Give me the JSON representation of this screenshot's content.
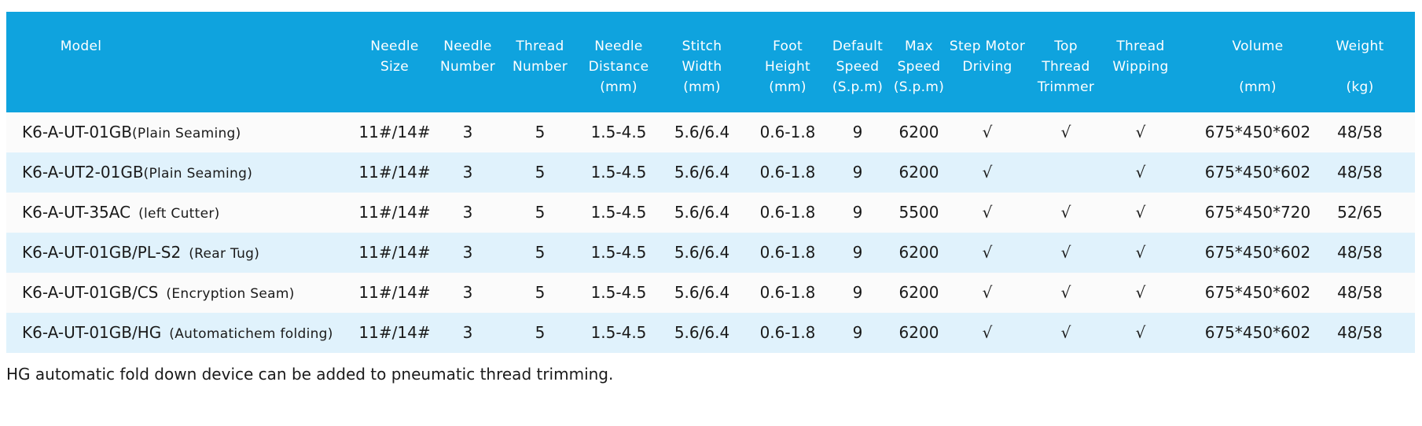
{
  "table": {
    "headers": [
      [
        "Model"
      ],
      [
        "Needle",
        "Size"
      ],
      [
        "Needle",
        "Number"
      ],
      [
        "Thread",
        "Number"
      ],
      [
        "Needle",
        "Distance",
        "(mm)"
      ],
      [
        "Stitch",
        "Width",
        "(mm)"
      ],
      [
        "Foot",
        "Height",
        "(mm)"
      ],
      [
        "Default",
        "Speed",
        "(S.p.m)"
      ],
      [
        "Max",
        "Speed",
        "(S.p.m)"
      ],
      [
        "Step Motor",
        "Driving"
      ],
      [
        "Top",
        "Thread",
        "Trimmer"
      ],
      [
        "Thread",
        "Wipping"
      ],
      [
        "Volume",
        "",
        "(mm)"
      ],
      [
        "Weight",
        "",
        "(kg)"
      ]
    ],
    "rows": [
      {
        "model": "K6-A-UT-01GB",
        "note": "(Plain Seaming)",
        "needle_size": "11#/14#",
        "needle_number": "3",
        "thread_number": "5",
        "needle_distance": "1.5-4.5",
        "stitch_width": "5.6/6.4",
        "foot_height": "0.6-1.8",
        "default_speed": "9",
        "max_speed": "6200",
        "step_motor": "√",
        "top_thread_trimmer": "√",
        "thread_wipping": "√",
        "volume": "675*450*602",
        "weight": "48/58"
      },
      {
        "model": "K6-A-UT2-01GB",
        "note": "(Plain Seaming)",
        "needle_size": "11#/14#",
        "needle_number": "3",
        "thread_number": "5",
        "needle_distance": "1.5-4.5",
        "stitch_width": "5.6/6.4",
        "foot_height": "0.6-1.8",
        "default_speed": "9",
        "max_speed": "6200",
        "step_motor": "√",
        "top_thread_trimmer": "",
        "thread_wipping": "√",
        "volume": "675*450*602",
        "weight": "48/58"
      },
      {
        "model": "K6-A-UT-35AC",
        "note": "(left Cutter)",
        "needle_size": "11#/14#",
        "needle_number": "3",
        "thread_number": "5",
        "needle_distance": "1.5-4.5",
        "stitch_width": "5.6/6.4",
        "foot_height": "0.6-1.8",
        "default_speed": "9",
        "max_speed": "5500",
        "step_motor": "√",
        "top_thread_trimmer": "√",
        "thread_wipping": "√",
        "volume": "675*450*720",
        "weight": "52/65"
      },
      {
        "model": "K6-A-UT-01GB/PL-S2",
        "note": "(Rear Tug)",
        "needle_size": "11#/14#",
        "needle_number": "3",
        "thread_number": "5",
        "needle_distance": "1.5-4.5",
        "stitch_width": "5.6/6.4",
        "foot_height": "0.6-1.8",
        "default_speed": "9",
        "max_speed": "6200",
        "step_motor": "√",
        "top_thread_trimmer": "√",
        "thread_wipping": "√",
        "volume": "675*450*602",
        "weight": "48/58"
      },
      {
        "model": "K6-A-UT-01GB/CS",
        "note": "(Encryption Seam)",
        "needle_size": "11#/14#",
        "needle_number": "3",
        "thread_number": "5",
        "needle_distance": "1.5-4.5",
        "stitch_width": "5.6/6.4",
        "foot_height": "0.6-1.8",
        "default_speed": "9",
        "max_speed": "6200",
        "step_motor": "√",
        "top_thread_trimmer": "√",
        "thread_wipping": "√",
        "volume": "675*450*602",
        "weight": "48/58"
      },
      {
        "model": "K6-A-UT-01GB/HG",
        "note": "(Automatichem folding)",
        "needle_size": "11#/14#",
        "needle_number": "3",
        "thread_number": "5",
        "needle_distance": "1.5-4.5",
        "stitch_width": "5.6/6.4",
        "foot_height": "0.6-1.8",
        "default_speed": "9",
        "max_speed": "6200",
        "step_motor": "√",
        "top_thread_trimmer": "√",
        "thread_wipping": "√",
        "volume": "675*450*602",
        "weight": "48/58"
      }
    ]
  },
  "footnote": "HG automatic fold down device can be added to pneumatic thread trimming.",
  "colors": {
    "header_bg": "#0fa3de",
    "header_text": "#ffffff",
    "row_even_bg": "#fbfbfb",
    "row_odd_bg": "#e0f2fc",
    "body_text": "#1a1a1a"
  }
}
